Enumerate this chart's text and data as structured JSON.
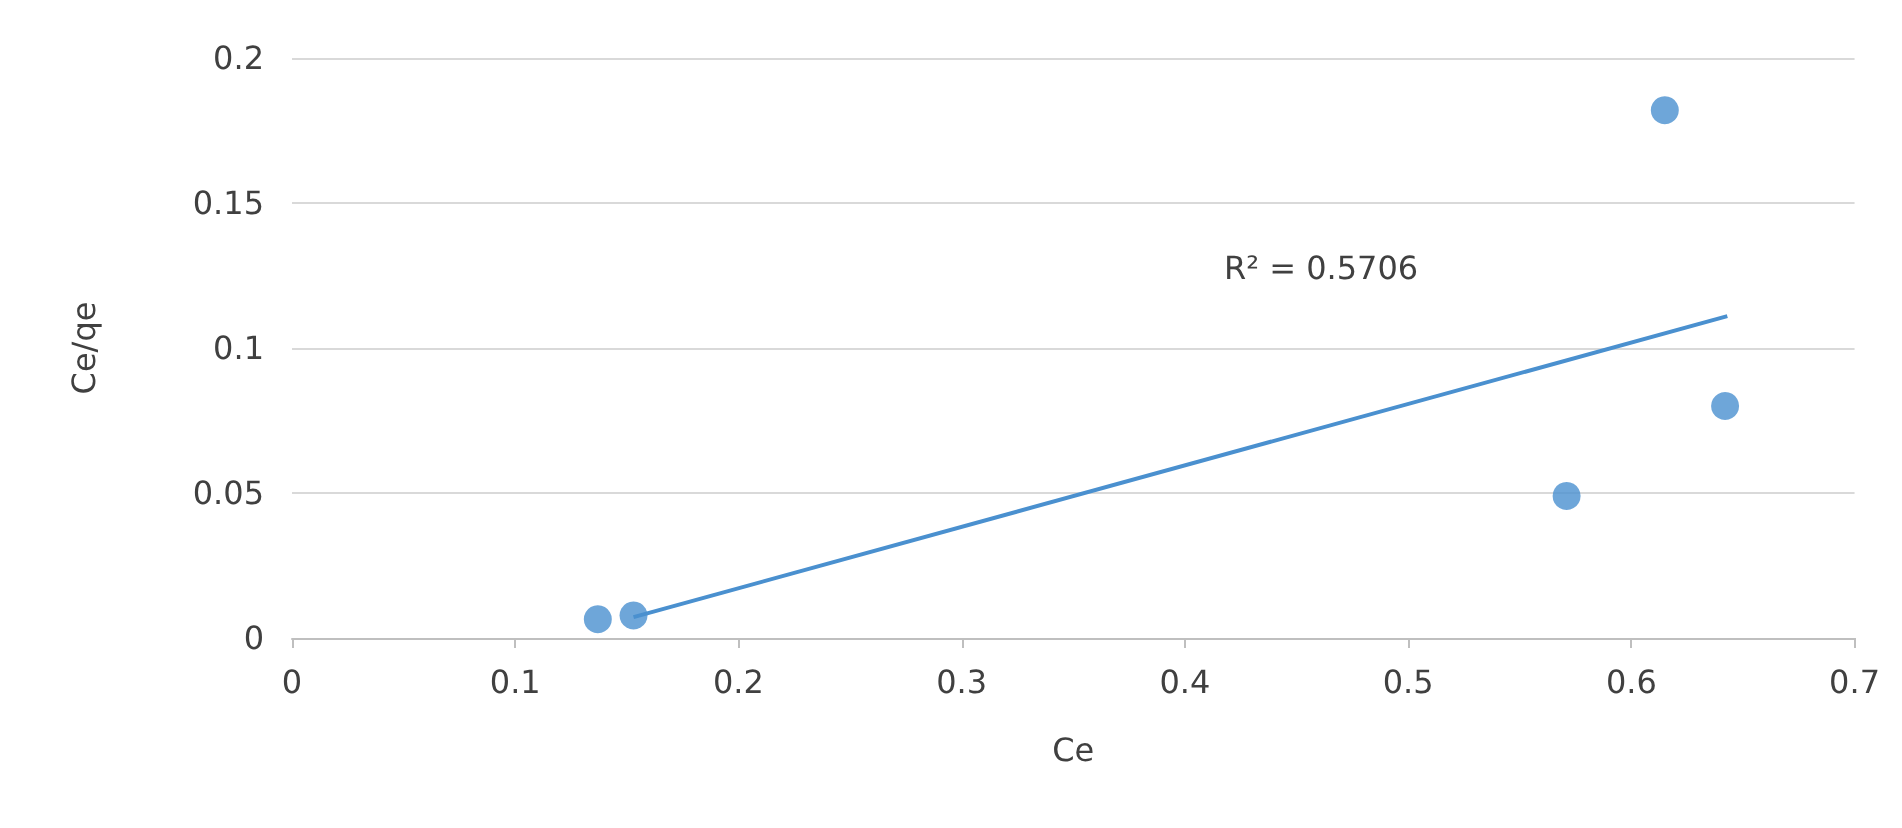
{
  "chart_data": {
    "type": "scatter",
    "xlabel": "Ce",
    "ylabel": "Ce/qe",
    "xlim": [
      0,
      0.7
    ],
    "xticks": [
      0,
      0.1,
      0.2,
      0.3,
      0.4,
      0.5,
      0.6,
      0.7
    ],
    "ylim": [
      0,
      0.2
    ],
    "yticks": [
      0,
      0.05,
      0.1,
      0.15,
      0.2
    ],
    "grid": "y",
    "series": [
      {
        "color": "#4a90cf",
        "marker": "circle",
        "x": [
          0.137,
          0.153,
          0.571,
          0.615,
          0.642
        ],
        "values": [
          0.0065,
          0.0078,
          0.049,
          0.182,
          0.08
        ]
      },
      {
        "type": "line",
        "color": "#4a90cf",
        "marker": "none",
        "x": [
          0.153,
          0.643
        ],
        "values": [
          0.0072,
          0.111
        ]
      }
    ],
    "annotations": [
      "R² = 0.5706"
    ]
  }
}
